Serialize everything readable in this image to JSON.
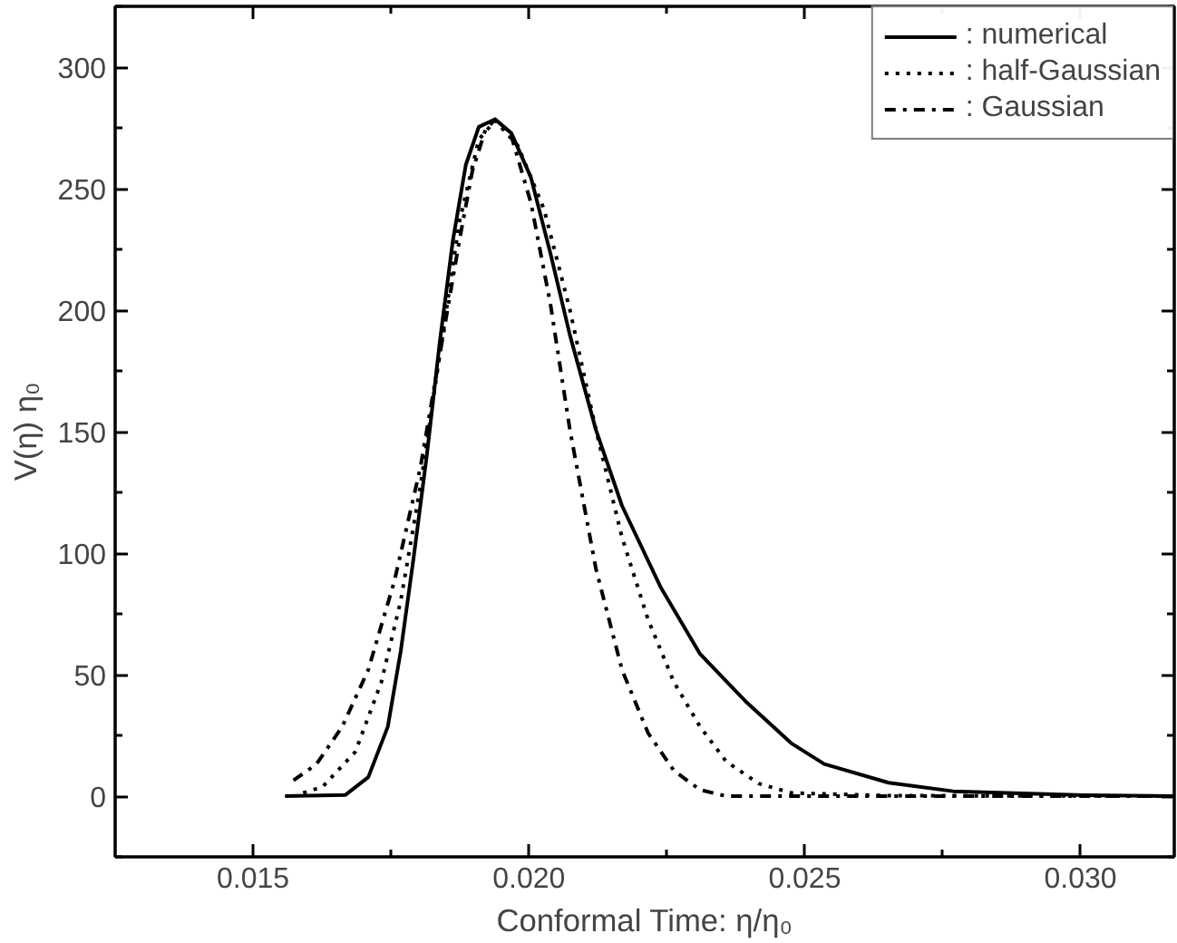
{
  "chart_data": {
    "type": "line",
    "xlabel": "Conformal Time: η/η₀",
    "ylabel": "V(η) η₀",
    "xlim": [
      0.0125,
      0.0317
    ],
    "xticks": [
      {
        "value": 0.015,
        "label": "0.015"
      },
      {
        "value": 0.02,
        "label": "0.020"
      },
      {
        "value": 0.025,
        "label": "0.025"
      },
      {
        "value": 0.03,
        "label": "0.030"
      }
    ],
    "ylim": [
      -25,
      325
    ],
    "yticks": [
      0,
      50,
      100,
      150,
      200,
      250,
      300
    ],
    "grid": false,
    "legend": "top right",
    "series": [
      {
        "name": ": numerical",
        "color": "#000000",
        "line_style": "solid",
        "x": [
          0.015579,
          0.016676,
          0.017089,
          0.017443,
          0.017678,
          0.017914,
          0.01815,
          0.018386,
          0.018622,
          0.018857,
          0.019093,
          0.019388,
          0.019683,
          0.020037,
          0.02039,
          0.020744,
          0.021216,
          0.021688,
          0.022395,
          0.023103,
          0.023928,
          0.024754,
          0.025355,
          0.026522,
          0.02769,
          0.03006,
          0.031687
        ],
        "values": [
          0,
          0.5,
          7.8,
          28.6,
          59.8,
          98.7,
          140.3,
          187.1,
          228.6,
          259.8,
          275.4,
          278.5,
          272.8,
          254.6,
          223.4,
          189.7,
          150.7,
          119.5,
          85.7,
          58.5,
          39,
          21.8,
          13.2,
          5.5,
          2,
          0.4,
          0
        ]
      },
      {
        "name": ": half-Gaussian",
        "color": "#000000",
        "line_style": "dotted",
        "x": [
          0.015908,
          0.016263,
          0.016853,
          0.017324,
          0.017678,
          0.018032,
          0.018386,
          0.01874,
          0.019093,
          0.019388,
          0.019801,
          0.020273,
          0.020744,
          0.021216,
          0.021688,
          0.02216,
          0.022632,
          0.023103,
          0.023575,
          0.024165,
          0.024754,
          0.026522,
          0.031687
        ],
        "values": [
          1.3,
          3.9,
          18.2,
          46.8,
          80.5,
          127.3,
          181.8,
          236.4,
          270.2,
          278,
          267.6,
          241.6,
          200.1,
          150.7,
          106.5,
          72.7,
          46.8,
          28.6,
          14.3,
          5.2,
          1.3,
          0.2,
          0
        ]
      },
      {
        "name": ": Gaussian",
        "color": "#000000",
        "line_style": "dashdot",
        "x": [
          0.015732,
          0.016145,
          0.016617,
          0.017089,
          0.01756,
          0.018032,
          0.018386,
          0.01874,
          0.018975,
          0.019211,
          0.019388,
          0.019683,
          0.020037,
          0.02039,
          0.020744,
          0.021216,
          0.021688,
          0.02216,
          0.022632,
          0.023103,
          0.023575,
          0.031687
        ],
        "values": [
          6.5,
          13,
          28.6,
          52,
          88.3,
          135.1,
          181.8,
          228.6,
          257.2,
          274.1,
          278.5,
          271.5,
          244.2,
          202.6,
          150.7,
          93.5,
          52,
          26,
          10.4,
          2.6,
          0,
          0
        ]
      }
    ]
  }
}
